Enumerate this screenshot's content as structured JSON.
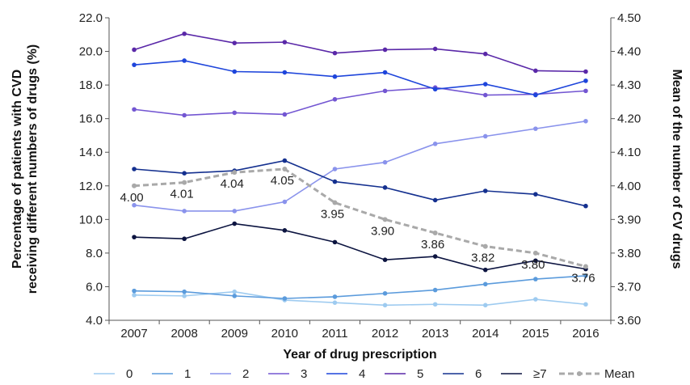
{
  "chart_data": {
    "type": "line",
    "x": [
      2007,
      2008,
      2009,
      2010,
      2011,
      2012,
      2013,
      2014,
      2015,
      2016
    ],
    "xticks": [
      "2007",
      "2008",
      "2009",
      "2010",
      "2011",
      "2012",
      "2013",
      "2014",
      "2015",
      "2016"
    ],
    "xlabel": "Year of drug prescription",
    "ylabel_lines": [
      "Percentage of patients with CVD",
      "receiving different numbers of drugs (%)"
    ],
    "y2label": "Mean of the number of CV drugs",
    "ylim": [
      4.0,
      22.0
    ],
    "y2lim": [
      3.6,
      4.5
    ],
    "yticks": [
      "4.0",
      "6.0",
      "8.0",
      "10.0",
      "12.0",
      "14.0",
      "16.0",
      "18.0",
      "20.0",
      "22.0"
    ],
    "y2ticks": [
      "3.60",
      "3.70",
      "3.80",
      "3.90",
      "4.00",
      "4.10",
      "4.20",
      "4.30",
      "4.40",
      "4.50"
    ],
    "grid": false,
    "legend_position": "bottom",
    "series": [
      {
        "name": "0",
        "color": "#9ecbf0",
        "values": [
          5.5,
          5.45,
          5.7,
          5.2,
          5.05,
          4.9,
          4.95,
          4.9,
          5.25,
          4.95
        ]
      },
      {
        "name": "1",
        "color": "#5b9bdc",
        "values": [
          5.75,
          5.7,
          5.45,
          5.3,
          5.4,
          5.6,
          5.8,
          6.15,
          6.45,
          6.65
        ]
      },
      {
        "name": "2",
        "color": "#8a93ec",
        "values": [
          10.85,
          10.5,
          10.5,
          11.05,
          13.0,
          13.4,
          14.5,
          14.95,
          15.4,
          15.85
        ]
      },
      {
        "name": "3",
        "color": "#7356d2",
        "values": [
          16.55,
          16.2,
          16.35,
          16.25,
          17.15,
          17.65,
          17.85,
          17.4,
          17.45,
          17.65
        ]
      },
      {
        "name": "4",
        "color": "#1e45db",
        "values": [
          19.2,
          19.45,
          18.8,
          18.75,
          18.5,
          18.75,
          17.75,
          18.05,
          17.4,
          18.25
        ]
      },
      {
        "name": "5",
        "color": "#5a28a8",
        "values": [
          20.1,
          21.05,
          20.5,
          20.55,
          19.9,
          20.1,
          20.15,
          19.85,
          18.85,
          18.8
        ]
      },
      {
        "name": "6",
        "color": "#14308f",
        "values": [
          13.0,
          12.75,
          12.9,
          13.5,
          12.25,
          11.9,
          11.15,
          11.7,
          11.5,
          10.8
        ]
      },
      {
        "name": "≥7",
        "color": "#0c1440",
        "values": [
          8.95,
          8.85,
          9.75,
          9.35,
          8.65,
          7.6,
          7.8,
          7.0,
          7.55,
          7.05
        ]
      }
    ],
    "mean_series": {
      "name": "Mean",
      "color": "#a9a9a9",
      "values": [
        4.0,
        4.01,
        4.04,
        4.05,
        3.95,
        3.9,
        3.86,
        3.82,
        3.8,
        3.76
      ],
      "labels": [
        "4.00",
        "4.01",
        "4.04",
        "4.05",
        "3.95",
        "3.90",
        "3.86",
        "3.82",
        "3.80",
        "3.76"
      ]
    },
    "legend_label_colors": {
      "≥7": "#1a3fc4"
    }
  }
}
